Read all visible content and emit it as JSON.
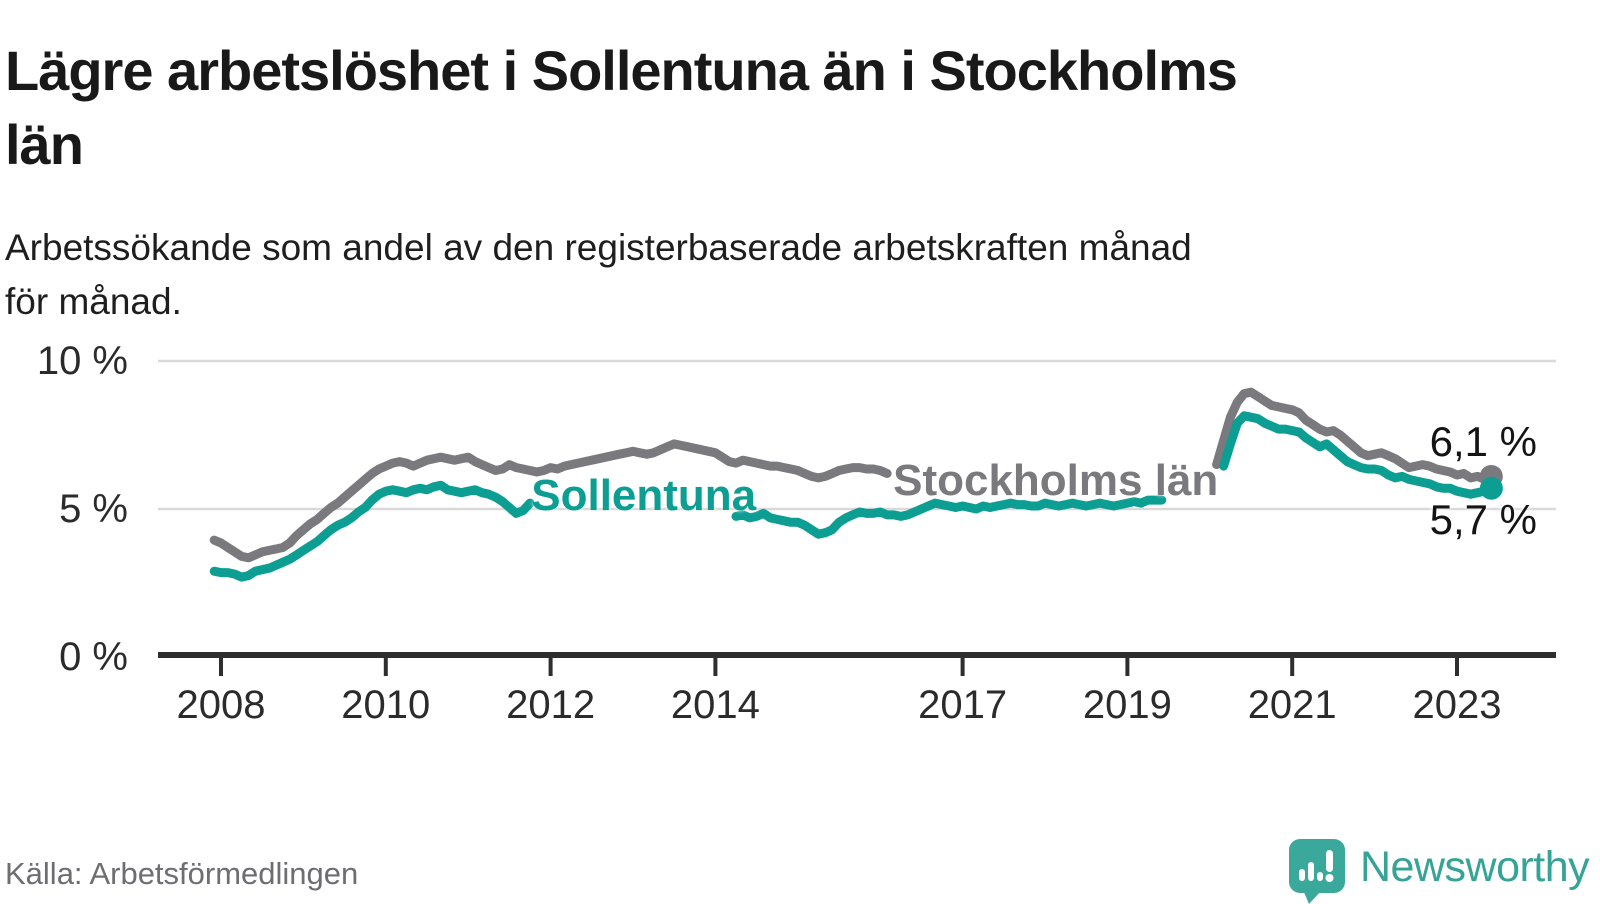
{
  "title": "Lägre arbetslöshet i Sollentuna än i Stockholms län",
  "title_lines": [
    "Lägre arbetslöshet i Sollentuna än i Stockholms",
    "län"
  ],
  "subtitle": "Arbetssökande som andel av den registerbaserade arbetskraften månad för månad.",
  "subtitle_lines": [
    "Arbetssökande som andel av den registerbaserade arbetskraften månad",
    "för månad."
  ],
  "source": "Källa: Arbetsförmedlingen",
  "logo": {
    "text": "Newsworthy",
    "color": "#35a396",
    "icon": "speech-bubble-bar-chart"
  },
  "colors": {
    "sollentuna": "#0d9e93",
    "stockholms_lan": "#7a7a7e",
    "gridline": "#d9d9d9",
    "axis": "#2e2e2e",
    "end_label_text": "#141414"
  },
  "chart_data": {
    "type": "line",
    "title": "Lägre arbetslöshet i Sollentuna än i Stockholms län",
    "unit": "percent",
    "ylim": [
      0,
      10
    ],
    "grid": "horizontal",
    "legend_position": "inline-labels",
    "yticks": [
      {
        "value": 0,
        "label": "0 %"
      },
      {
        "value": 5,
        "label": "5 %"
      },
      {
        "value": 10,
        "label": "10 %"
      }
    ],
    "xticks": [
      {
        "value": 2008,
        "label": "2008"
      },
      {
        "value": 2010,
        "label": "2010"
      },
      {
        "value": 2012,
        "label": "2012"
      },
      {
        "value": 2014,
        "label": "2014"
      },
      {
        "value": 2017,
        "label": "2017"
      },
      {
        "value": 2019,
        "label": "2019"
      },
      {
        "value": 2021,
        "label": "2021"
      },
      {
        "value": 2023,
        "label": "2023"
      }
    ],
    "x_unit": "decimal_year_monthly_step",
    "series": [
      {
        "name": "Stockholms län",
        "color": "#7a7a7e",
        "end_value": 6.1,
        "end_value_label": "6,1 %",
        "end_label_side": "above",
        "inline_label": {
          "x": 2018.13,
          "y": 5.95
        },
        "segments": [
          {
            "start": 2007.917,
            "values": [
              3.95,
              3.85,
              3.7,
              3.55,
              3.4,
              3.35,
              3.45,
              3.55,
              3.6,
              3.65,
              3.7,
              3.85,
              4.1,
              4.3,
              4.5,
              4.65,
              4.85,
              5.05,
              5.2,
              5.4,
              5.6,
              5.8,
              6.0,
              6.2,
              6.35,
              6.45,
              6.55,
              6.6,
              6.55,
              6.45,
              6.55,
              6.65,
              6.7,
              6.75,
              6.7,
              6.65,
              6.7,
              6.75,
              6.6,
              6.5,
              6.4,
              6.3,
              6.35,
              6.5,
              6.4,
              6.35,
              6.3,
              6.25,
              6.3,
              6.4,
              6.35,
              6.45,
              6.5,
              6.55,
              6.6,
              6.65,
              6.7,
              6.75,
              6.8,
              6.85,
              6.9,
              6.95,
              6.9,
              6.85,
              6.9,
              7.0,
              7.1,
              7.2,
              7.15,
              7.1,
              7.05,
              7.0,
              6.95,
              6.9,
              6.75,
              6.6,
              6.55,
              6.65,
              6.6,
              6.55,
              6.5,
              6.45,
              6.45,
              6.4,
              6.35,
              6.3,
              6.2,
              6.1,
              6.05,
              6.1,
              6.2,
              6.3,
              6.35,
              6.4,
              6.4,
              6.35,
              6.35,
              6.3,
              6.2
            ]
          },
          {
            "start": 2020.083,
            "values": [
              6.5,
              7.3,
              8.1,
              8.6,
              8.9,
              8.95,
              8.8,
              8.65,
              8.5,
              8.45,
              8.4,
              8.35,
              8.25,
              8.0,
              7.85,
              7.7,
              7.6,
              7.65,
              7.5,
              7.3,
              7.1,
              6.9,
              6.8,
              6.85,
              6.9,
              6.8,
              6.7,
              6.55,
              6.4,
              6.45,
              6.5,
              6.45,
              6.35,
              6.3,
              6.25,
              6.15,
              6.2,
              6.05,
              6.1,
              6.0,
              6.1
            ]
          }
        ]
      },
      {
        "name": "Sollentuna",
        "color": "#0d9e93",
        "end_value": 5.7,
        "end_value_label": "5,7 %",
        "end_label_side": "below",
        "inline_label": {
          "x": 2013.13,
          "y": 5.44
        },
        "segments": [
          {
            "start": 2007.917,
            "values": [
              2.9,
              2.85,
              2.85,
              2.8,
              2.7,
              2.75,
              2.9,
              2.95,
              3.0,
              3.1,
              3.2,
              3.3,
              3.45,
              3.6,
              3.75,
              3.9,
              4.1,
              4.3,
              4.45,
              4.55,
              4.7,
              4.9,
              5.05,
              5.3,
              5.5,
              5.6,
              5.65,
              5.6,
              5.55,
              5.65,
              5.7,
              5.65,
              5.75,
              5.8,
              5.65,
              5.6,
              5.55,
              5.6,
              5.65,
              5.55,
              5.5,
              5.4,
              5.25,
              5.05,
              4.85,
              4.95,
              5.2
            ]
          },
          {
            "start": 2014.25,
            "values": [
              4.75,
              4.8,
              4.7,
              4.75,
              4.85,
              4.7,
              4.65,
              4.6,
              4.55,
              4.55,
              4.45,
              4.3,
              4.15,
              4.2,
              4.3,
              4.55,
              4.7,
              4.8,
              4.9,
              4.85,
              4.85,
              4.9,
              4.8,
              4.8,
              4.75,
              4.8,
              4.9,
              5.0,
              5.1,
              5.2,
              5.15,
              5.1,
              5.05,
              5.1,
              5.05,
              5.0,
              5.1,
              5.05,
              5.1,
              5.15,
              5.2,
              5.15,
              5.15,
              5.1,
              5.1,
              5.2,
              5.15,
              5.1,
              5.15,
              5.2,
              5.15,
              5.1,
              5.15,
              5.2,
              5.15,
              5.1,
              5.15,
              5.2,
              5.25,
              5.2,
              5.3,
              5.3,
              5.3
            ]
          },
          {
            "start": 2020.167,
            "values": [
              6.45,
              7.2,
              7.9,
              8.15,
              8.1,
              8.05,
              7.9,
              7.8,
              7.7,
              7.7,
              7.65,
              7.6,
              7.4,
              7.25,
              7.1,
              7.2,
              7.0,
              6.8,
              6.6,
              6.5,
              6.4,
              6.35,
              6.35,
              6.3,
              6.15,
              6.05,
              6.1,
              6.0,
              5.95,
              5.9,
              5.85,
              5.75,
              5.7,
              5.7,
              5.6,
              5.55,
              5.5,
              5.55,
              5.6,
              5.7
            ]
          }
        ]
      }
    ]
  }
}
